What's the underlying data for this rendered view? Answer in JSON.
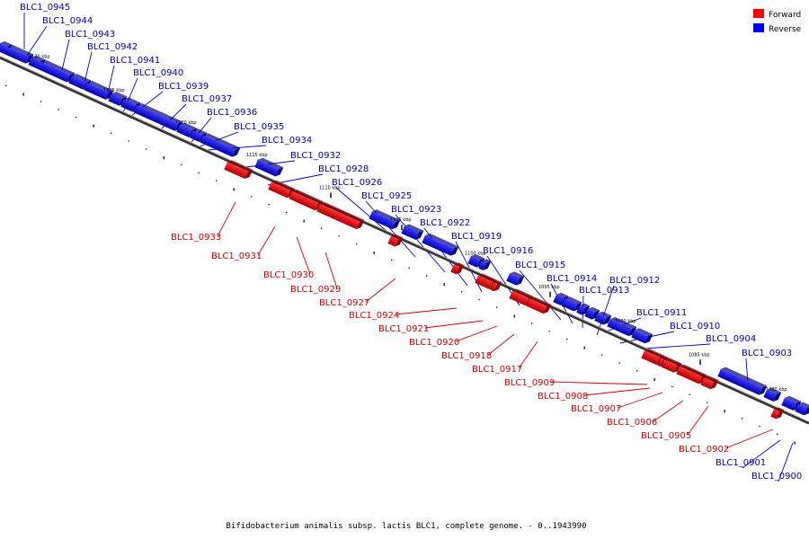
{
  "caption": "Bifidobacterium animalis subsp. lactis BLC1, complete genome. - 0..1943990",
  "legend": [
    {
      "label": "Forward",
      "color": "#ff0000"
    },
    {
      "label": "Reverse",
      "color": "#0000ff"
    }
  ],
  "colors": {
    "forward": "#ff0000",
    "reverse": "#0000ff",
    "backbone": "#555555"
  },
  "ticks": [
    "1130 kbp",
    "1125 kbp",
    "1120 kbp",
    "1115 kbp",
    "1110 kbp",
    "1105 kbp",
    "1100 kbp",
    "1095 kbp",
    "1090 kbp",
    "1085 kbp",
    "1080 kbp"
  ],
  "reverse_genes": [
    "BLC1_0945",
    "BLC1_0944",
    "BLC1_0943",
    "BLC1_0942",
    "BLC1_0941",
    "BLC1_0940",
    "BLC1_0939",
    "BLC1_0937",
    "BLC1_0936",
    "BLC1_0935",
    "BLC1_0934",
    "BLC1_0932",
    "BLC1_0928",
    "BLC1_0926",
    "BLC1_0925",
    "BLC1_0923",
    "BLC1_0922",
    "BLC1_0919",
    "BLC1_0916",
    "BLC1_0915",
    "BLC1_0914",
    "BLC1_0913",
    "BLC1_0912",
    "BLC1_0911",
    "BLC1_0910",
    "BLC1_0904",
    "BLC1_0903",
    "BLC1_0901",
    "BLC1_0900"
  ],
  "forward_genes": [
    "BLC1_0933",
    "BLC1_0931",
    "BLC1_0930",
    "BLC1_0929",
    "BLC1_0927",
    "BLC1_0924",
    "BLC1_0921",
    "BLC1_0920",
    "BLC1_0918",
    "BLC1_0917",
    "BLC1_0909",
    "BLC1_0908",
    "BLC1_0907",
    "BLC1_0906",
    "BLC1_0905",
    "BLC1_0902"
  ]
}
